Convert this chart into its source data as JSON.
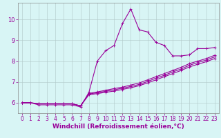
{
  "xlabel": "Windchill (Refroidissement éolien,°C)",
  "x": [
    0,
    1,
    2,
    3,
    4,
    5,
    6,
    7,
    8,
    9,
    10,
    11,
    12,
    13,
    14,
    15,
    16,
    17,
    18,
    19,
    20,
    21,
    22,
    23
  ],
  "line1": [
    6.0,
    6.0,
    5.9,
    5.9,
    5.9,
    5.9,
    5.9,
    5.8,
    6.5,
    8.0,
    8.5,
    8.75,
    9.8,
    10.5,
    9.5,
    9.4,
    8.9,
    8.75,
    8.25,
    8.25,
    8.3,
    8.6,
    8.6,
    8.65
  ],
  "line2": [
    6.0,
    6.0,
    5.95,
    5.95,
    5.95,
    5.95,
    5.95,
    5.85,
    6.45,
    6.52,
    6.6,
    6.68,
    6.75,
    6.85,
    6.95,
    7.1,
    7.25,
    7.4,
    7.55,
    7.7,
    7.88,
    8.0,
    8.12,
    8.28
  ],
  "line3": [
    6.0,
    6.0,
    5.95,
    5.95,
    5.95,
    5.95,
    5.95,
    5.85,
    6.42,
    6.48,
    6.55,
    6.62,
    6.7,
    6.78,
    6.88,
    7.02,
    7.18,
    7.32,
    7.48,
    7.62,
    7.8,
    7.93,
    8.05,
    8.2
  ],
  "line4": [
    6.0,
    6.0,
    5.95,
    5.95,
    5.95,
    5.95,
    5.95,
    5.85,
    6.38,
    6.44,
    6.5,
    6.56,
    6.64,
    6.72,
    6.82,
    6.95,
    7.1,
    7.25,
    7.4,
    7.55,
    7.72,
    7.85,
    7.97,
    8.12
  ],
  "line_color": "#990099",
  "bg_color": "#d8f5f5",
  "grid_color": "#b0c8c8",
  "ylim": [
    5.5,
    10.8
  ],
  "xlim": [
    -0.5,
    23.5
  ],
  "yticks": [
    6,
    7,
    8,
    9,
    10
  ],
  "xticks": [
    0,
    1,
    2,
    3,
    4,
    5,
    6,
    7,
    8,
    9,
    10,
    11,
    12,
    13,
    14,
    15,
    16,
    17,
    18,
    19,
    20,
    21,
    22,
    23
  ],
  "tick_fontsize": 5.5,
  "xlabel_fontsize": 6.5,
  "marker": "+",
  "marker_size": 3,
  "linewidth": 0.8
}
